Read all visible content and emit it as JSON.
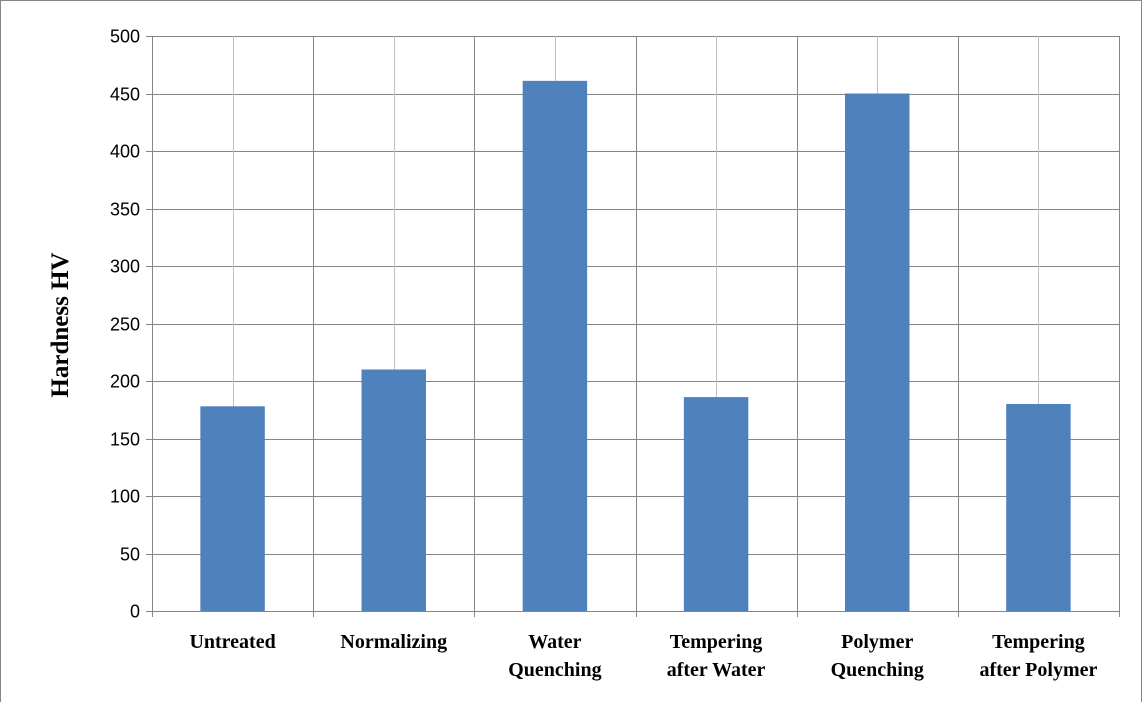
{
  "chart_data": {
    "type": "bar",
    "title": "",
    "xlabel": "",
    "ylabel": "Hardness HV",
    "ylim": [
      0,
      500
    ],
    "yticks": [
      0,
      50,
      100,
      150,
      200,
      250,
      300,
      350,
      400,
      450,
      500
    ],
    "grid": true,
    "legend": "none",
    "categories": [
      [
        "Untreated"
      ],
      [
        "Normalizing"
      ],
      [
        "Water",
        "Quenching"
      ],
      [
        "Tempering",
        "after Water"
      ],
      [
        "Polymer",
        "Quenching"
      ],
      [
        "Tempering",
        "after Polymer"
      ]
    ],
    "values": [
      178,
      210,
      461,
      186,
      450,
      180
    ],
    "bar_color": "#4f81bd",
    "grid_color": "#bfbfbf",
    "axis_color": "#868686"
  }
}
